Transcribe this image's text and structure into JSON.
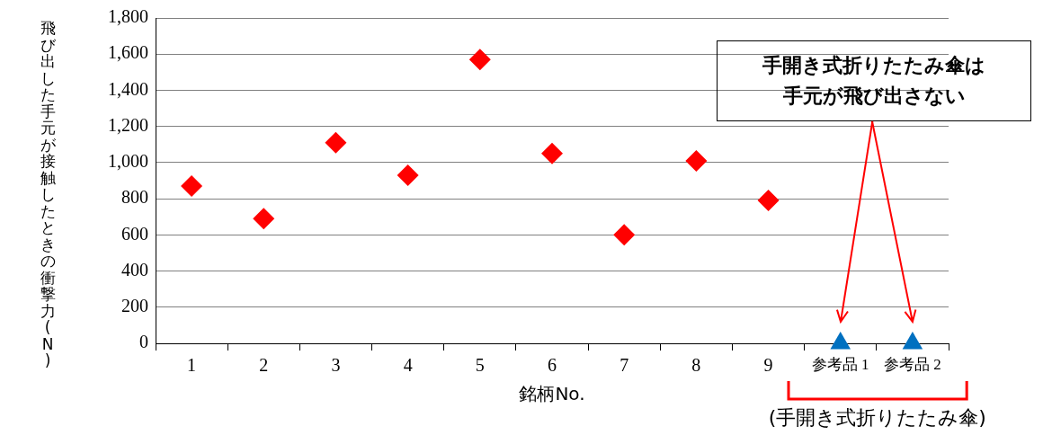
{
  "chart_data": {
    "type": "scatter",
    "xlabel": "銘柄No.",
    "ylabel": "飛び出した手元が接触したときの衝撃力(N)",
    "categories": [
      "1",
      "2",
      "3",
      "4",
      "5",
      "6",
      "7",
      "8",
      "9",
      "参考品 1",
      "参考品 2"
    ],
    "series": [
      {
        "color": "#ff0000",
        "marker": "diamond",
        "values": [
          870,
          690,
          1110,
          930,
          1570,
          1050,
          600,
          1010,
          790,
          null,
          null
        ]
      },
      {
        "color": "#0070c0",
        "marker": "triangle",
        "values": [
          null,
          null,
          null,
          null,
          null,
          null,
          null,
          null,
          null,
          0,
          0
        ]
      }
    ],
    "ylim": [
      0,
      1800
    ],
    "yticks": [
      0,
      200,
      400,
      600,
      800,
      {
        "value": 1000,
        "label": "1,000"
      },
      {
        "value": 1200,
        "label": "1,200"
      },
      {
        "value": 1400,
        "label": "1,400"
      },
      {
        "value": 1600,
        "label": "1,600"
      },
      {
        "value": 1800,
        "label": "1,800"
      }
    ],
    "grid": "y",
    "legend": false,
    "annotations": [
      "手開き式折りたたみ傘は手元が飛び出さない",
      "(手開き式折りたたみ傘)"
    ]
  }
}
